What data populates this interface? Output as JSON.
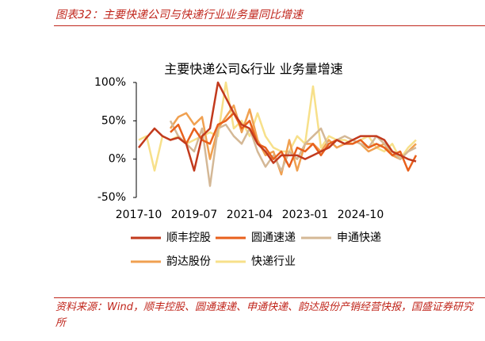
{
  "header": "图表32：主要快递公司与快递行业业务量同比增速",
  "source": "资料来源：Wind，顺丰控股、圆通速递、申通快递、韵达股份产销经营快报，国盛证券研究所",
  "chart_data": {
    "type": "line",
    "title": "主要快递公司&行业  业务量增速",
    "categories": [
      "2017-10",
      null,
      null,
      null,
      null,
      null,
      null,
      "2019-07",
      null,
      null,
      null,
      null,
      null,
      null,
      "2021-04",
      null,
      null,
      null,
      null,
      null,
      null,
      "2023-01",
      null,
      null,
      null,
      null,
      null,
      null,
      "2024-10",
      null,
      null,
      null,
      null,
      null,
      null,
      null
    ],
    "ylim": [
      -50,
      100
    ],
    "yticks": [
      {
        "value": -50,
        "label": "-50%"
      },
      {
        "value": 0,
        "label": "0%"
      },
      {
        "value": 50,
        "label": "50%"
      },
      {
        "value": 100,
        "label": "100%"
      }
    ],
    "series": [
      {
        "name": "顺丰控股",
        "color": "#c23a1d",
        "values": [
          15,
          28,
          40,
          30,
          25,
          28,
          20,
          -15,
          30,
          40,
          100,
          80,
          60,
          45,
          40,
          20,
          10,
          -5,
          5,
          5,
          5,
          0,
          5,
          10,
          15,
          25,
          20,
          25,
          30,
          30,
          30,
          25,
          10,
          5,
          0,
          -3
        ]
      },
      {
        "name": "圆通速递",
        "color": "#e8601c",
        "values": [
          null,
          null,
          null,
          null,
          35,
          45,
          20,
          40,
          25,
          20,
          45,
          50,
          60,
          40,
          50,
          20,
          15,
          0,
          10,
          -10,
          15,
          10,
          20,
          5,
          20,
          25,
          20,
          20,
          25,
          15,
          20,
          15,
          5,
          10,
          -15,
          5
        ]
      },
      {
        "name": "申通快递",
        "color": "#d4b896",
        "values": [
          null,
          null,
          null,
          null,
          50,
          30,
          20,
          10,
          40,
          -35,
          40,
          45,
          30,
          20,
          40,
          10,
          -10,
          5,
          -15,
          10,
          0,
          20,
          30,
          40,
          15,
          25,
          30,
          25,
          20,
          15,
          30,
          20,
          10,
          0,
          10,
          15
        ]
      },
      {
        "name": "韵达股份",
        "color": "#f0a050",
        "values": [
          null,
          null,
          null,
          null,
          40,
          55,
          60,
          45,
          55,
          0,
          40,
          55,
          70,
          35,
          65,
          25,
          5,
          10,
          -20,
          25,
          -15,
          20,
          20,
          10,
          25,
          15,
          20,
          25,
          20,
          10,
          15,
          20,
          5,
          0,
          10,
          20
        ]
      },
      {
        "name": "快递行业",
        "color": "#f7e08a",
        "values": [
          25,
          30,
          -15,
          30,
          25,
          30,
          20,
          25,
          30,
          35,
          30,
          100,
          40,
          50,
          30,
          60,
          30,
          15,
          10,
          10,
          30,
          20,
          95,
          15,
          30,
          25,
          25,
          20,
          25,
          30,
          15,
          10,
          20,
          0,
          15,
          25
        ]
      }
    ]
  }
}
